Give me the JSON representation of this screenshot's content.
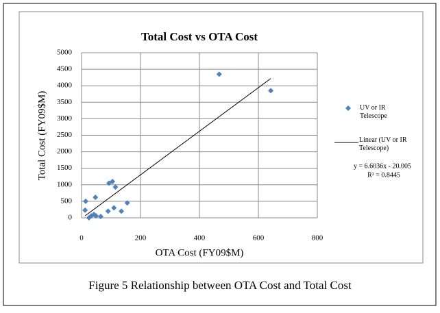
{
  "chart_data": {
    "type": "scatter",
    "title": "Total Cost vs OTA Cost",
    "x_label": "OTA Cost (FY09$M)",
    "y_label": "Total Cost (FY09$M)",
    "caption": "Figure 5 Relationship between OTA Cost and Total Cost",
    "xlim": [
      0,
      800
    ],
    "xticks": [
      0,
      200,
      400,
      600,
      800
    ],
    "ylim": [
      0,
      5000
    ],
    "yticks": [
      0,
      500,
      1000,
      1500,
      2000,
      2500,
      3000,
      3500,
      4000,
      4500,
      5000
    ],
    "grid": true,
    "series": [
      {
        "name": "UV or IR Telescope",
        "color": "#4f81bd",
        "x": [
          14,
          12,
          25,
          33,
          42,
          49,
          65,
          47,
          93,
          105,
          115,
          90,
          110,
          135,
          155,
          467,
          642
        ],
        "values": [
          500,
          230,
          0,
          60,
          100,
          60,
          40,
          620,
          1050,
          1100,
          930,
          200,
          300,
          200,
          450,
          4350,
          3850
        ]
      }
    ],
    "trendline": {
      "name": "Linear (UV or IR Telescope)",
      "slope": 6.6036,
      "intercept": -20.005,
      "equation": "y = 6.6036x - 20.005",
      "r2": "R² = 0.8445",
      "color": "#000000"
    }
  }
}
